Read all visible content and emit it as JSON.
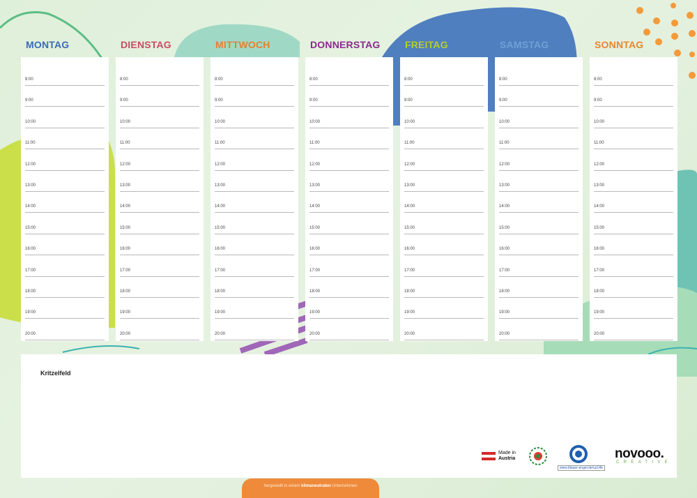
{
  "days": [
    {
      "label": "MONTAG",
      "color": "#3b6cb5"
    },
    {
      "label": "DIENSTAG",
      "color": "#c94b64"
    },
    {
      "label": "MITTWOCH",
      "color": "#e8802d"
    },
    {
      "label": "DONNERSTAG",
      "color": "#8a2a8c"
    },
    {
      "label": "FREITAG",
      "color": "#b5cf2a"
    },
    {
      "label": "SAMSTAG",
      "color": "#6fa1d6"
    },
    {
      "label": "SONNTAG",
      "color": "#e8852f"
    }
  ],
  "times": [
    "8:00",
    "9:00",
    "10:00",
    "11:00",
    "12:00",
    "13:00",
    "14:00",
    "15:00",
    "16:00",
    "17:00",
    "18:00",
    "19:00",
    "20:00"
  ],
  "notes": {
    "label": "Kritzelfeld"
  },
  "footer": {
    "prefix": "hergestellt in einem ",
    "bold": "klimaneutralen",
    "suffix": " Unternehmen"
  },
  "badges": {
    "made_in": "Made in",
    "country": "Austria",
    "url": "www.blauer-engel.de/uz14b"
  },
  "brand": {
    "name": "novooo.",
    "sub": "CREATIVE"
  }
}
